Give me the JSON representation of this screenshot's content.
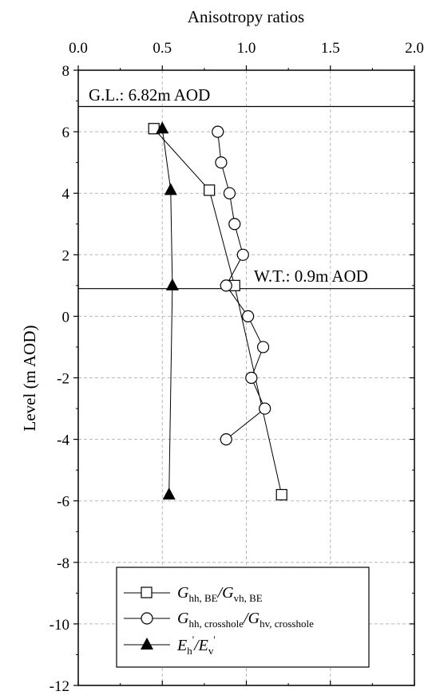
{
  "chart_data": {
    "type": "scatter",
    "xlabel": "Anisotropy ratios",
    "ylabel": "Level (m AOD)",
    "xlim": [
      0.0,
      2.0
    ],
    "ylim": [
      -12,
      8
    ],
    "x_ticks": [
      "0.0",
      "0.5",
      "1.0",
      "1.5",
      "2.0"
    ],
    "y_ticks": [
      "-12",
      "-10",
      "-8",
      "-6",
      "-4",
      "-2",
      "0",
      "2",
      "4",
      "6",
      "8"
    ],
    "grid": "dashed",
    "x_axis_position": "top",
    "legend_position": "bottom",
    "annotations": [
      {
        "text": "G.L.: 6.82m AOD",
        "level": 6.82
      },
      {
        "text": "W.T.: 0.9m AOD",
        "level": 0.9
      }
    ],
    "series": [
      {
        "marker": "open-square",
        "legend": {
          "G1": "G",
          "s1": "hh, BE",
          "G2": "G",
          "s2": "vh, BE"
        },
        "points": [
          [
            0.45,
            6.1
          ],
          [
            0.78,
            4.1
          ],
          [
            0.93,
            1.0
          ],
          [
            1.21,
            -5.8
          ]
        ]
      },
      {
        "marker": "open-circle",
        "legend": {
          "G1": "G",
          "s1": "hh, crosshole",
          "G2": "G",
          "s2": "hv, crosshole"
        },
        "points": [
          [
            0.83,
            6.0
          ],
          [
            0.85,
            5.0
          ],
          [
            0.9,
            4.0
          ],
          [
            0.93,
            3.0
          ],
          [
            0.98,
            2.0
          ],
          [
            0.88,
            1.0
          ],
          [
            1.01,
            0.0
          ],
          [
            1.1,
            -1.0
          ],
          [
            1.03,
            -2.0
          ],
          [
            1.11,
            -3.0
          ],
          [
            0.88,
            -4.0
          ]
        ]
      },
      {
        "marker": "filled-triangle",
        "legend": {
          "G1": "E",
          "s1": "h",
          "p1": "'",
          "G2": "E",
          "s2": "v",
          "p2": "'"
        },
        "points": [
          [
            0.5,
            6.1
          ],
          [
            0.55,
            4.1
          ],
          [
            0.56,
            1.0
          ],
          [
            0.54,
            -5.8
          ]
        ]
      }
    ]
  }
}
